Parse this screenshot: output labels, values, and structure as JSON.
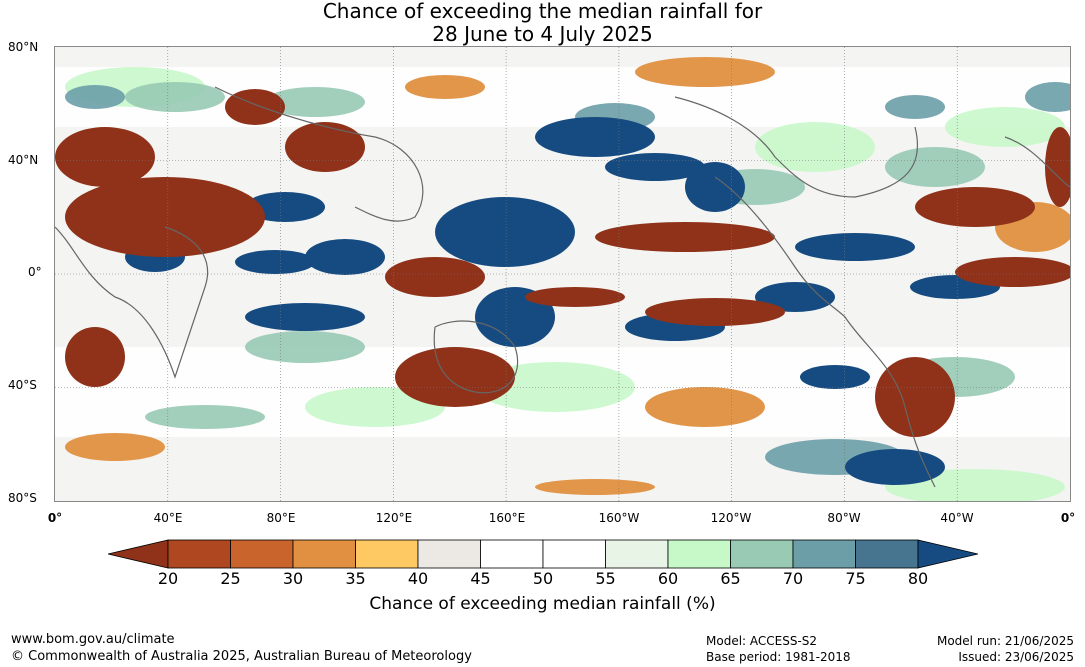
{
  "title": {
    "line1": "Chance of exceeding the median rainfall for",
    "line2": "28 June to 4 July 2025"
  },
  "map": {
    "lat_labels": [
      "80°N",
      "40°N",
      "0°",
      "40°S",
      "80°S"
    ],
    "lon_labels": [
      "0°",
      "40°E",
      "80°E",
      "120°E",
      "160°E",
      "160°W",
      "120°W",
      "80°W",
      "40°W",
      "0°"
    ]
  },
  "colorbar": {
    "ticks": [
      "20",
      "25",
      "30",
      "35",
      "40",
      "45",
      "50",
      "55",
      "60",
      "65",
      "70",
      "75",
      "80"
    ],
    "colors": [
      "#8f3219",
      "#af4820",
      "#c9642d",
      "#e09040",
      "#fec962",
      "#ece9e5",
      "#ffffff",
      "#ffffff",
      "#e8f4e6",
      "#c6f8c8",
      "#98cab4",
      "#6b9ea7",
      "#47748e",
      "#164b82"
    ],
    "label": "Chance of exceeding median rainfall (%)"
  },
  "footer": {
    "url": "www.bom.gov.au/climate",
    "copyright": "© Commonwealth of Australia 2025, Australian Bureau of Meteorology",
    "model": "Model: ACCESS-S2",
    "base_period": "Base period: 1981-2018",
    "model_run": "Model run: 21/06/2025",
    "issued": "Issued: 23/06/2025"
  }
}
